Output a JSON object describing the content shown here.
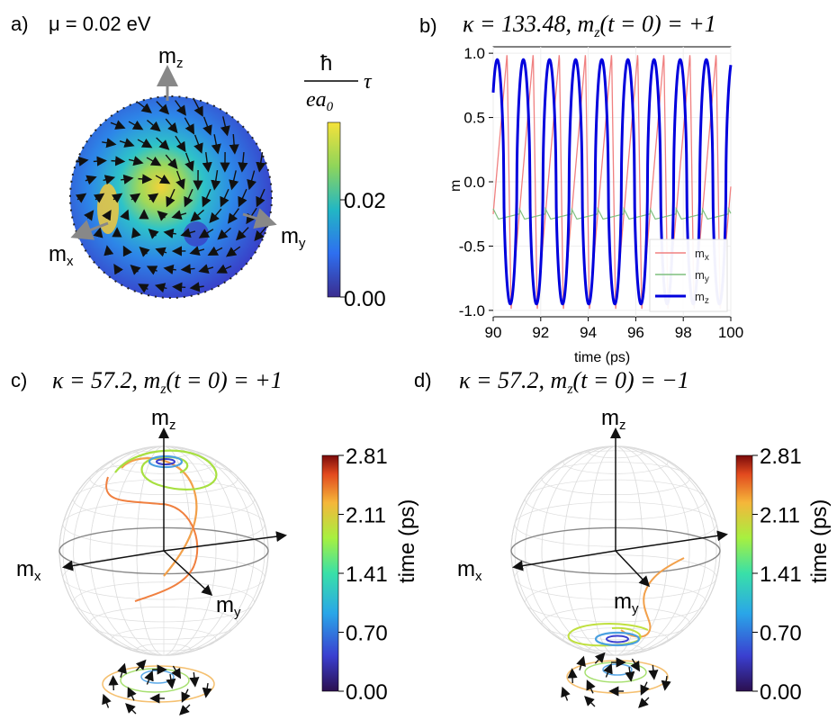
{
  "panels": {
    "a": {
      "label": "a)",
      "title": "μ = 0.02 eV"
    },
    "b": {
      "label": "b)",
      "title_prefix": "κ = 133.48, m",
      "title_sub": "z",
      "title_suffix": "(t = 0) = +1"
    },
    "c": {
      "label": "c)",
      "title_prefix": "κ = 57.2, m",
      "title_sub": "z",
      "title_suffix": "(t = 0) = +1"
    },
    "d": {
      "label": "d)",
      "title_prefix": "κ = 57.2, m",
      "title_sub": "z",
      "title_suffix": "(t = 0) = −1"
    }
  },
  "sphere_axes": {
    "mx": "m",
    "mx_sub": "x",
    "my": "m",
    "my_sub": "y",
    "mz": "m",
    "mz_sub": "z"
  },
  "colorbar_a": {
    "numerator": "ħ",
    "denominator": "ea",
    "denominator_sub": "0",
    "symbol": "τ",
    "ticks": [
      "0.00",
      "0.02"
    ]
  },
  "colorbar_time": {
    "label": "time (ps)",
    "ticks": [
      "0.00",
      "0.70",
      "1.41",
      "2.11",
      "2.81"
    ]
  },
  "colors": {
    "mx": "#f08080",
    "my": "#7fbf7f",
    "mz": "#0000dd"
  },
  "chart_data": {
    "type": "line",
    "title": "κ = 133.48, m_z(t=0) = +1",
    "xlabel": "time (ps)",
    "ylabel": "m",
    "xlim": [
      90,
      100
    ],
    "ylim": [
      -1.05,
      1.05
    ],
    "xticks": [
      "90",
      "92",
      "94",
      "96",
      "98",
      "100"
    ],
    "yticks": [
      "1.0",
      "0.5",
      "0.0",
      "-0.5",
      "-1.0"
    ],
    "period_ps": 1.1,
    "series": [
      {
        "name": "m",
        "sub": "x",
        "amplitude": 1.0,
        "phase_ps": 0.35,
        "style": "sawtooth"
      },
      {
        "name": "m",
        "sub": "y",
        "offset": -0.25,
        "amplitude": 0.04,
        "style": "ripple"
      },
      {
        "name": "m",
        "sub": "z",
        "amplitude": 0.95,
        "phase_ps": 0.0,
        "style": "sine"
      }
    ]
  }
}
